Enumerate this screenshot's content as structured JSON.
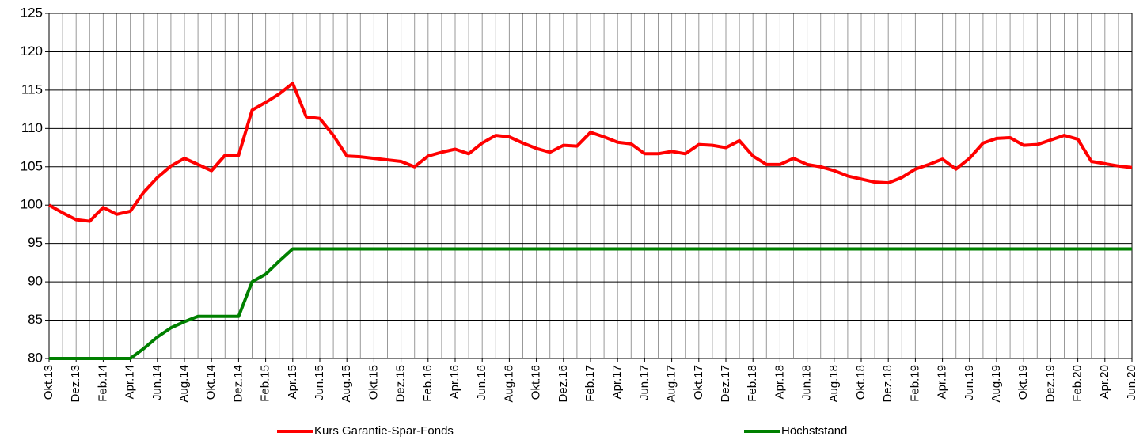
{
  "chart_data": {
    "type": "line",
    "categories": [
      "Okt.13",
      null,
      "Dez.13",
      null,
      "Feb.14",
      null,
      "Apr.14",
      null,
      "Jun.14",
      null,
      "Aug.14",
      null,
      "Okt.14",
      null,
      "Dez.14",
      null,
      "Feb.15",
      null,
      "Apr.15",
      null,
      "Jun.15",
      null,
      "Aug.15",
      null,
      "Okt.15",
      null,
      "Dez.15",
      null,
      "Feb.16",
      null,
      "Apr.16",
      null,
      "Jun.16",
      null,
      "Aug.16",
      null,
      "Okt.16",
      null,
      "Dez.16",
      null,
      "Feb.17",
      null,
      "Apr.17",
      null,
      "Jun.17",
      null,
      "Aug.17",
      null,
      "Okt.17",
      null,
      "Dez.17",
      null,
      "Feb.18",
      null,
      "Apr.18",
      null,
      "Jun.18",
      null,
      "Aug.18",
      null,
      "Okt.18",
      null,
      "Dez.18",
      null,
      "Feb.19",
      null,
      "Apr.19",
      null,
      "Jun.19",
      null,
      "Aug.19",
      null,
      "Okt.19",
      null,
      "Dez.19",
      null,
      "Feb.20",
      null,
      "Apr.20",
      null,
      "Jun.20"
    ],
    "series": [
      {
        "name": "Kurs Garantie-Spar-Fonds",
        "color": "#ff0000",
        "values": [
          100,
          99,
          98.1,
          97.9,
          99.7,
          98.8,
          99.2,
          101.7,
          103.6,
          105.1,
          106.1,
          105.3,
          104.5,
          106.5,
          106.5,
          112.4,
          113.4,
          114.5,
          115.9,
          111.5,
          111.3,
          109.1,
          106.4,
          106.3,
          106.1,
          105.9,
          105.7,
          105,
          106.4,
          106.9,
          107.3,
          106.7,
          108.1,
          109.1,
          108.9,
          108.1,
          107.4,
          106.9,
          107.8,
          107.7,
          109.5,
          108.9,
          108.2,
          108,
          106.7,
          106.7,
          107,
          106.7,
          107.9,
          107.8,
          107.5,
          108.4,
          106.4,
          105.3,
          105.3,
          106.1,
          105.3,
          105,
          104.5,
          103.8,
          103.4,
          103,
          102.9,
          103.6,
          104.7,
          105.3,
          106,
          104.7,
          106.1,
          108.1,
          108.7,
          108.8,
          107.8,
          107.9,
          108.5,
          109.1,
          108.6,
          105.7,
          105.4,
          105.1,
          104.9
        ]
      },
      {
        "name": "Höchststand",
        "color": "#008000",
        "values": [
          80,
          80,
          80,
          80,
          80,
          80,
          80,
          81.3,
          82.8,
          84,
          84.8,
          85.5,
          85.5,
          85.5,
          85.5,
          90,
          91,
          92.7,
          94.3,
          94.3,
          94.3,
          94.3,
          94.3,
          94.3,
          94.3,
          94.3,
          94.3,
          94.3,
          94.3,
          94.3,
          94.3,
          94.3,
          94.3,
          94.3,
          94.3,
          94.3,
          94.3,
          94.3,
          94.3,
          94.3,
          94.3,
          94.3,
          94.3,
          94.3,
          94.3,
          94.3,
          94.3,
          94.3,
          94.3,
          94.3,
          94.3,
          94.3,
          94.3,
          94.3,
          94.3,
          94.3,
          94.3,
          94.3,
          94.3,
          94.3,
          94.3,
          94.3,
          94.3,
          94.3,
          94.3,
          94.3,
          94.3,
          94.3,
          94.3,
          94.3,
          94.3,
          94.3,
          94.3,
          94.3,
          94.3,
          94.3,
          94.3,
          94.3,
          94.3,
          94.3,
          94.3
        ]
      }
    ],
    "ylim": [
      80,
      125
    ],
    "yticks": [
      80,
      85,
      90,
      95,
      100,
      105,
      110,
      115,
      120,
      125
    ],
    "grid": true
  }
}
